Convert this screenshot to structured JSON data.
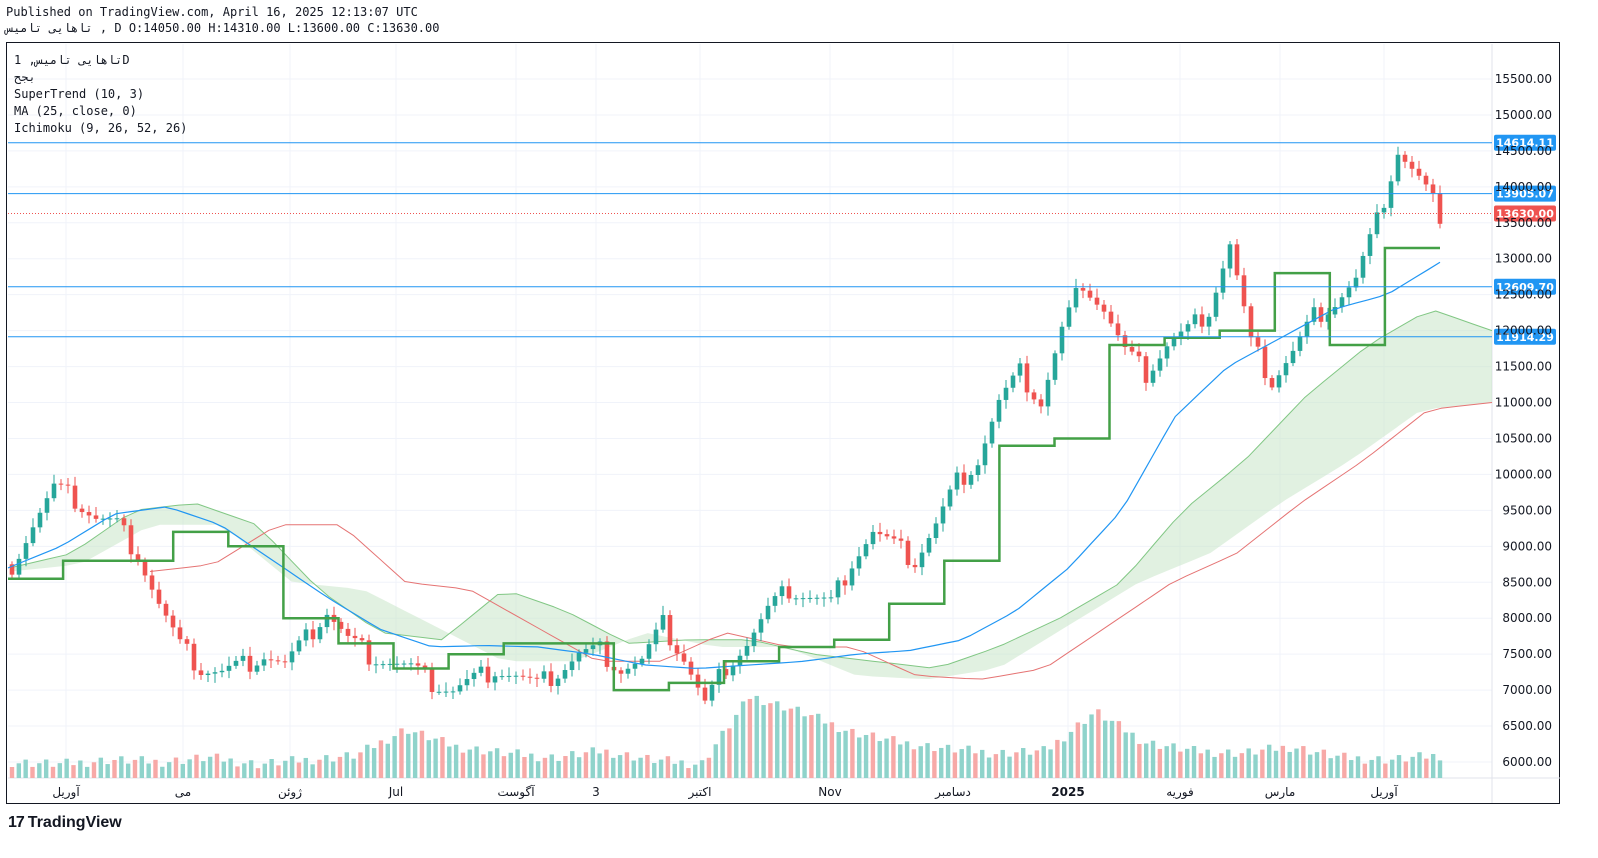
{
  "header": {
    "published": "Published on TradingView.com, April 16, 2025 12:13:07 UTC",
    "ohlc": "تاهایی تامیس , D O:14050.00 H:14310.00 L:13600.00 C:13630.00"
  },
  "legend": {
    "symbol": "تاهایی تامیس, 1D",
    "exchange": "بجح",
    "supertrend": "SuperTrend (10, 3)",
    "ma": "MA (25, close, 0)",
    "ichimoku": "Ichimoku (9, 26, 52, 26)"
  },
  "footer": {
    "brand": "TradingView"
  },
  "colors": {
    "up": "#26a69a",
    "down": "#ef5350",
    "ma": "#2196f3",
    "st_up": "#43a047",
    "st_down": "#a0393a",
    "cloud_up": "#c8e6c9",
    "cloud_down": "#ffcdd2",
    "hline": "#2196f3",
    "price": "#ef5350"
  },
  "chart_data": {
    "type": "candlestick",
    "x_tick_labels": [
      "آوریل",
      "می",
      "ژوئن",
      "Jul",
      "آگوست",
      "3",
      "اکتبر",
      "Nov",
      "دسامبر",
      "2025",
      "فوریه",
      "مارس",
      "آوریل"
    ],
    "y_ticks": [
      6000,
      6500,
      7000,
      7500,
      8000,
      8500,
      9000,
      9500,
      10000,
      10500,
      11000,
      11500,
      12000,
      12500,
      13000,
      13500,
      14000,
      14500,
      15000,
      15500
    ],
    "ylim": [
      5800,
      15750
    ],
    "horizontal_levels": [
      "14614.11",
      "13905.07",
      "12609.70",
      "11914.29"
    ],
    "last_price": "13630.00",
    "close_path": [
      8750,
      9300,
      9800,
      9650,
      9400,
      9300,
      8900,
      8200,
      7600,
      7300,
      7250,
      7350,
      7500,
      7350,
      7700,
      8100,
      7700,
      7500,
      7400,
      7300,
      7100,
      7000,
      7150,
      7300,
      7200,
      7050,
      7250,
      7500,
      7550,
      7300,
      7400,
      7900,
      7450,
      6800,
      7350,
      7650,
      8100,
      8400,
      8300,
      8200,
      8800,
      9200,
      9000,
      8800,
      9300,
      9900,
      10200,
      11000,
      11400,
      11000,
      12000,
      12700,
      12300,
      11700,
      11400,
      11800,
      12000,
      12300,
      13200,
      11800,
      11300,
      11700,
      12200,
      12400,
      12700,
      13500,
      14500,
      14100,
      13630
    ],
    "supertrend": [
      8550,
      8800,
      8800,
      9200,
      9000,
      8000,
      7650,
      7300,
      7500,
      7650,
      7650,
      7000,
      7100,
      7400,
      7600,
      7700,
      8200,
      8800,
      10400,
      10500,
      11800,
      11900,
      12000,
      12800,
      11800,
      13150,
      13150
    ],
    "ma25": [
      8700,
      9000,
      9450,
      9550,
      9300,
      8800,
      8300,
      7850,
      7600,
      7620,
      7600,
      7500,
      7350,
      7300,
      7350,
      7400,
      7500,
      7550,
      7700,
      8100,
      8700,
      9500,
      10800,
      11500,
      11900,
      12300,
      12500,
      12950
    ],
    "volume": [
      5,
      4,
      6,
      5,
      7,
      4,
      6,
      8,
      20,
      12,
      9,
      7,
      10,
      6,
      4,
      35,
      28,
      19,
      14,
      11,
      9,
      10,
      28,
      14,
      10,
      9,
      12,
      7,
      6,
      8
    ]
  }
}
